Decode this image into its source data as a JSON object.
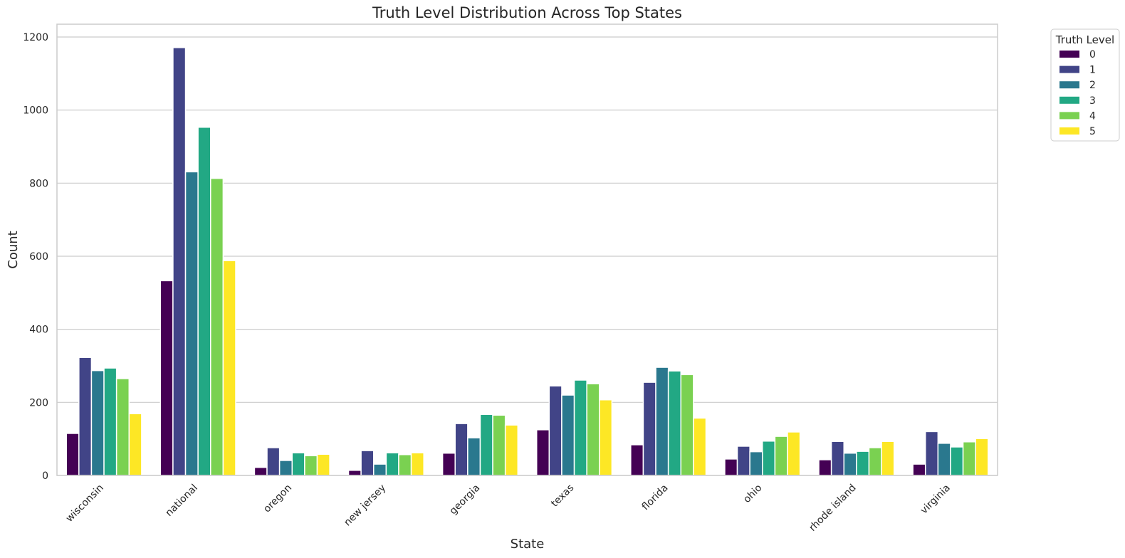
{
  "chart_data": {
    "type": "bar",
    "title": "Truth Level Distribution Across Top States",
    "xlabel": "State",
    "ylabel": "Count",
    "ylim": [
      0,
      1235
    ],
    "yticks": [
      0,
      200,
      400,
      600,
      800,
      1000,
      1200
    ],
    "grid": "y",
    "legend": {
      "title": "Truth Level",
      "placement": "outside-top-right"
    },
    "categories": [
      "wisconsin",
      "national",
      "oregon",
      "new jersey",
      "georgia",
      "texas",
      "florida",
      "ohio",
      "rhode island",
      "virginia"
    ],
    "series": [
      {
        "name": "0",
        "color": "#440154",
        "values": [
          115,
          533,
          22,
          14,
          61,
          125,
          84,
          45,
          43,
          31
        ]
      },
      {
        "name": "1",
        "color": "#414487",
        "values": [
          323,
          1171,
          76,
          68,
          142,
          245,
          255,
          80,
          93,
          120
        ]
      },
      {
        "name": "2",
        "color": "#2a788e",
        "values": [
          287,
          831,
          41,
          31,
          103,
          220,
          296,
          65,
          61,
          88
        ]
      },
      {
        "name": "3",
        "color": "#22a884",
        "values": [
          294,
          953,
          62,
          62,
          167,
          261,
          286,
          94,
          66,
          78
        ]
      },
      {
        "name": "4",
        "color": "#7ad151",
        "values": [
          265,
          813,
          54,
          57,
          165,
          251,
          276,
          107,
          76,
          92
        ]
      },
      {
        "name": "5",
        "color": "#fde725",
        "values": [
          169,
          588,
          58,
          62,
          138,
          207,
          157,
          119,
          93,
          101
        ]
      }
    ]
  }
}
